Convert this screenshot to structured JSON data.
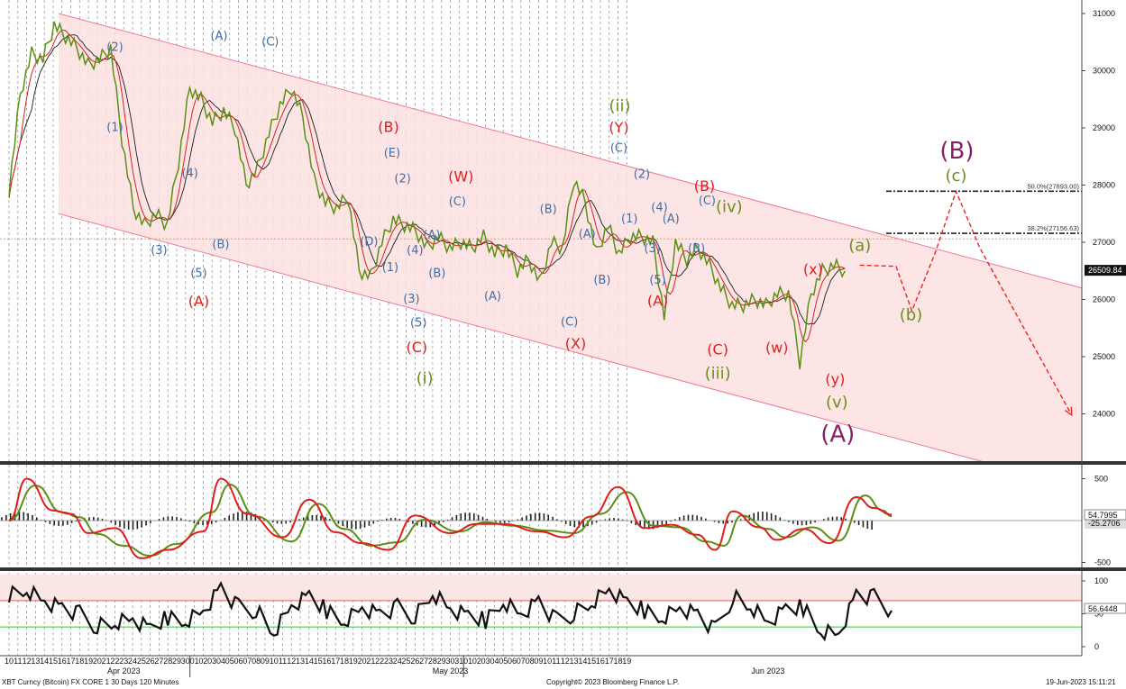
{
  "chart_data": {
    "type": "line",
    "instrument": "XBT Curncy (Bitcoin) FX CORE 1 30 Days 120 Minutes",
    "copyright": "Copyright© 2023 Bloomberg Finance L.P.",
    "timestamp": "19-Jun-2023 15:11:21",
    "last_price_label": "26509.84",
    "y_ticks": [
      "31000",
      "30000",
      "29000",
      "28000",
      "27000",
      "26000",
      "25000",
      "24000"
    ],
    "ylim": [
      23200,
      31200
    ],
    "x_day_labels": [
      "10",
      "11",
      "12",
      "13",
      "14",
      "15",
      "16",
      "17",
      "18",
      "19",
      "20",
      "21",
      "22",
      "23",
      "24",
      "25",
      "26",
      "27",
      "28",
      "29",
      "30",
      "01",
      "02",
      "03",
      "04",
      "05",
      "06",
      "07",
      "08",
      "09",
      "10",
      "11",
      "12",
      "13",
      "14",
      "15",
      "16",
      "17",
      "18",
      "19",
      "20",
      "21",
      "22",
      "23",
      "24",
      "25",
      "26",
      "27",
      "28",
      "29",
      "30",
      "31",
      "01",
      "02",
      "03",
      "04",
      "05",
      "06",
      "07",
      "08",
      "09",
      "10",
      "11",
      "12",
      "13",
      "14",
      "15",
      "16",
      "17",
      "18",
      "19"
    ],
    "x_month_labels": [
      {
        "label": "Apr 2023",
        "day_index": 13
      },
      {
        "label": "May 2023",
        "day_index": 50
      },
      {
        "label": "Jun 2023",
        "day_index": 86
      }
    ],
    "price_series": [
      [
        0,
        27900
      ],
      [
        1,
        29600
      ],
      [
        2,
        30300
      ],
      [
        3,
        30200
      ],
      [
        4,
        30800
      ],
      [
        5,
        30600
      ],
      [
        6,
        30400
      ],
      [
        7,
        30100
      ],
      [
        8,
        30200
      ],
      [
        9,
        30400
      ],
      [
        10,
        28800
      ],
      [
        11,
        27600
      ],
      [
        12,
        27300
      ],
      [
        13,
        27500
      ],
      [
        14,
        27300
      ],
      [
        15,
        28400
      ],
      [
        16,
        29700
      ],
      [
        17,
        29500
      ],
      [
        18,
        29100
      ],
      [
        19,
        29300
      ],
      [
        20,
        29000
      ],
      [
        21,
        28000
      ],
      [
        22,
        28300
      ],
      [
        23,
        28900
      ],
      [
        24,
        29400
      ],
      [
        25,
        29700
      ],
      [
        26,
        29200
      ],
      [
        27,
        28100
      ],
      [
        28,
        27700
      ],
      [
        29,
        27600
      ],
      [
        30,
        27800
      ],
      [
        31,
        26500
      ],
      [
        32,
        26400
      ],
      [
        33,
        27000
      ],
      [
        34,
        27400
      ],
      [
        35,
        27300
      ],
      [
        36,
        27200
      ],
      [
        37,
        26900
      ],
      [
        38,
        27100
      ],
      [
        39,
        26900
      ],
      [
        40,
        27000
      ],
      [
        41,
        26900
      ],
      [
        42,
        27100
      ],
      [
        43,
        26800
      ],
      [
        44,
        26900
      ],
      [
        45,
        26500
      ],
      [
        46,
        26700
      ],
      [
        47,
        26300
      ],
      [
        48,
        27000
      ],
      [
        49,
        26900
      ],
      [
        50,
        28100
      ],
      [
        51,
        27700
      ],
      [
        52,
        26800
      ],
      [
        53,
        27300
      ],
      [
        54,
        26800
      ],
      [
        55,
        27100
      ],
      [
        56,
        27100
      ],
      [
        57,
        27000
      ],
      [
        58,
        25700
      ],
      [
        59,
        27000
      ],
      [
        60,
        26700
      ],
      [
        61,
        26900
      ],
      [
        62,
        26600
      ],
      [
        63,
        26200
      ],
      [
        64,
        25900
      ],
      [
        65,
        25900
      ],
      [
        66,
        26000
      ],
      [
        67,
        25900
      ],
      [
        68,
        26100
      ],
      [
        69,
        26100
      ],
      [
        70,
        24900
      ],
      [
        71,
        26100
      ],
      [
        72,
        26500
      ],
      [
        73,
        26600
      ],
      [
        74,
        26500
      ]
    ],
    "horizontal_levels": [
      {
        "label": "50.0%(27893.00)",
        "value": 27893
      },
      {
        "label": "38.2%(27156.63)",
        "value": 27157
      },
      {
        "value": 27060,
        "style": "dotted-orange"
      }
    ],
    "channel": {
      "upper": [
        [
          4,
          31000
        ],
        [
          117,
          26200
        ]
      ],
      "lower": [
        [
          4,
          27500
        ],
        [
          117,
          22700
        ]
      ]
    },
    "wave_labels": [
      {
        "t": "(2)",
        "x": 12,
        "y": 30400,
        "c": "blue"
      },
      {
        "t": "(1)",
        "x": 12,
        "y": 29000,
        "c": "blue"
      },
      {
        "t": "(4)",
        "x": 20.5,
        "y": 28200,
        "c": "blue"
      },
      {
        "t": "(3)",
        "x": 17,
        "y": 26850,
        "c": "blue"
      },
      {
        "t": "(B)",
        "x": 24,
        "y": 26950,
        "c": "blue"
      },
      {
        "t": "(5)",
        "x": 21.5,
        "y": 26450,
        "c": "blue"
      },
      {
        "t": "(A)",
        "x": 21.5,
        "y": 25950,
        "c": "red"
      },
      {
        "t": "(A)",
        "x": 23.8,
        "y": 30600,
        "c": "blue"
      },
      {
        "t": "(C)",
        "x": 29.6,
        "y": 30500,
        "c": "blue"
      },
      {
        "t": "(B)",
        "x": 43,
        "y": 29000,
        "c": "red"
      },
      {
        "t": "(E)",
        "x": 43.4,
        "y": 28550,
        "c": "blue"
      },
      {
        "t": "(2)",
        "x": 44.6,
        "y": 28100,
        "c": "blue"
      },
      {
        "t": "(D)",
        "x": 40.8,
        "y": 27000,
        "c": "blue"
      },
      {
        "t": "(1)",
        "x": 43.2,
        "y": 26550,
        "c": "blue"
      },
      {
        "t": "(4)",
        "x": 46,
        "y": 26850,
        "c": "blue"
      },
      {
        "t": "(A)",
        "x": 47.9,
        "y": 27120,
        "c": "blue"
      },
      {
        "t": "(B)",
        "x": 48.5,
        "y": 26450,
        "c": "blue"
      },
      {
        "t": "(3)",
        "x": 45.6,
        "y": 26000,
        "c": "blue"
      },
      {
        "t": "(5)",
        "x": 46.4,
        "y": 25580,
        "c": "blue"
      },
      {
        "t": "(C)",
        "x": 46.2,
        "y": 25150,
        "c": "red"
      },
      {
        "t": "(i)",
        "x": 47.1,
        "y": 24610,
        "c": "green"
      },
      {
        "t": "(W)",
        "x": 51.2,
        "y": 28130,
        "c": "red"
      },
      {
        "t": "(C)",
        "x": 50.8,
        "y": 27700,
        "c": "blue"
      },
      {
        "t": "(A)",
        "x": 54.8,
        "y": 26050,
        "c": "blue"
      },
      {
        "t": "(B)",
        "x": 61.1,
        "y": 27570,
        "c": "blue"
      },
      {
        "t": "(A)",
        "x": 65.5,
        "y": 27130,
        "c": "blue"
      },
      {
        "t": "(B)",
        "x": 67.2,
        "y": 26330,
        "c": "blue"
      },
      {
        "t": "(C)",
        "x": 63.5,
        "y": 25600,
        "c": "blue"
      },
      {
        "t": "(X)",
        "x": 64.2,
        "y": 25210,
        "c": "red"
      },
      {
        "t": "(ii)",
        "x": 69.2,
        "y": 29370,
        "c": "green"
      },
      {
        "t": "(Y)",
        "x": 69.1,
        "y": 28990,
        "c": "red"
      },
      {
        "t": "(C)",
        "x": 69.1,
        "y": 28640,
        "c": "blue"
      },
      {
        "t": "(2)",
        "x": 71.7,
        "y": 28180,
        "c": "blue"
      },
      {
        "t": "(1)",
        "x": 70.3,
        "y": 27400,
        "c": "blue"
      },
      {
        "t": "(4)",
        "x": 73.7,
        "y": 27600,
        "c": "blue"
      },
      {
        "t": "(A)",
        "x": 75,
        "y": 27400,
        "c": "blue"
      },
      {
        "t": "(3)",
        "x": 72.9,
        "y": 26880,
        "c": "blue"
      },
      {
        "t": "(5)",
        "x": 73.5,
        "y": 26330,
        "c": "blue"
      },
      {
        "t": "(A)",
        "x": 73.5,
        "y": 25960,
        "c": "red"
      },
      {
        "t": "(B)",
        "x": 77.9,
        "y": 26880,
        "c": "blue"
      },
      {
        "t": "(B)",
        "x": 78.8,
        "y": 27970,
        "c": "red"
      },
      {
        "t": "(C)",
        "x": 79.1,
        "y": 27720,
        "c": "blue"
      },
      {
        "t": "(iv)",
        "x": 81.6,
        "y": 27610,
        "c": "green"
      },
      {
        "t": "(C)",
        "x": 80.3,
        "y": 25110,
        "c": "red"
      },
      {
        "t": "(iii)",
        "x": 80.3,
        "y": 24690,
        "c": "green"
      },
      {
        "t": "(w)",
        "x": 87,
        "y": 25140,
        "c": "red"
      },
      {
        "t": "(x)",
        "x": 91.1,
        "y": 26510,
        "c": "red"
      },
      {
        "t": "(y)",
        "x": 93.6,
        "y": 24590,
        "c": "red"
      },
      {
        "t": "(v)",
        "x": 93.8,
        "y": 24190,
        "c": "green"
      },
      {
        "t": "(A)",
        "x": 93.9,
        "y": 23630,
        "c": "purple"
      },
      {
        "t": "(a)",
        "x": 96.4,
        "y": 26930,
        "c": "green"
      },
      {
        "t": "(b)",
        "x": 102.2,
        "y": 25720,
        "c": "green"
      },
      {
        "t": "(c)",
        "x": 107.3,
        "y": 28150,
        "c": "green"
      },
      {
        "t": "(B)",
        "x": 107.4,
        "y": 28580,
        "c": "purple"
      }
    ],
    "forecast_path": [
      [
        96.4,
        26600
      ],
      [
        100.5,
        26580
      ],
      [
        102.3,
        25800
      ],
      [
        104.9,
        26800
      ],
      [
        107.3,
        27890
      ],
      [
        110,
        26900
      ],
      [
        120.4,
        23980
      ]
    ],
    "macd": {
      "ticks": [
        "500",
        "-500"
      ],
      "ylim": [
        -620,
        620
      ],
      "last_value": "54.7995",
      "second_value": "-25.2706",
      "series_fast": [
        [
          0,
          0
        ],
        [
          2,
          500
        ],
        [
          5,
          120
        ],
        [
          7,
          80
        ],
        [
          9,
          -150
        ],
        [
          12,
          -90
        ],
        [
          15,
          -450
        ],
        [
          18,
          -350
        ],
        [
          22,
          -130
        ],
        [
          24,
          500
        ],
        [
          27,
          80
        ],
        [
          31,
          -200
        ],
        [
          34,
          250
        ],
        [
          37,
          -140
        ],
        [
          40,
          -270
        ],
        [
          43,
          -350
        ],
        [
          46,
          60
        ],
        [
          50,
          -150
        ],
        [
          53,
          -40
        ],
        [
          56,
          -40
        ],
        [
          60,
          -130
        ],
        [
          63,
          -200
        ],
        [
          66,
          50
        ],
        [
          69,
          400
        ],
        [
          72,
          -90
        ],
        [
          75,
          -50
        ],
        [
          78,
          -170
        ],
        [
          80,
          -350
        ],
        [
          82,
          110
        ],
        [
          85,
          -80
        ],
        [
          87,
          -230
        ],
        [
          90,
          -100
        ],
        [
          93,
          -270
        ],
        [
          96,
          280
        ],
        [
          98,
          150
        ],
        [
          100,
          70
        ]
      ],
      "series_signal": [
        [
          0,
          0
        ],
        [
          3,
          420
        ],
        [
          6,
          100
        ],
        [
          8,
          40
        ],
        [
          10,
          -160
        ],
        [
          13,
          -300
        ],
        [
          16,
          -420
        ],
        [
          19,
          -280
        ],
        [
          23,
          100
        ],
        [
          25,
          430
        ],
        [
          28,
          50
        ],
        [
          32,
          -250
        ],
        [
          35,
          200
        ],
        [
          38,
          -100
        ],
        [
          41,
          -300
        ],
        [
          44,
          -260
        ],
        [
          47,
          10
        ],
        [
          51,
          -130
        ],
        [
          54,
          -20
        ],
        [
          57,
          -60
        ],
        [
          61,
          -120
        ],
        [
          64,
          -150
        ],
        [
          67,
          80
        ],
        [
          70,
          340
        ],
        [
          73,
          -60
        ],
        [
          76,
          -80
        ],
        [
          79,
          -250
        ],
        [
          81,
          -300
        ],
        [
          83,
          60
        ],
        [
          86,
          -100
        ],
        [
          88,
          -200
        ],
        [
          91,
          -80
        ],
        [
          94,
          -240
        ],
        [
          97,
          300
        ],
        [
          99,
          120
        ],
        [
          100,
          50
        ]
      ]
    },
    "rsi": {
      "ticks": [
        "100",
        "50",
        "0"
      ],
      "ylim": [
        -5,
        110
      ],
      "last_value": "56.6448",
      "upper_line": 70,
      "lower_line": 30,
      "series": [
        [
          0,
          80
        ],
        [
          2,
          88
        ],
        [
          4,
          70
        ],
        [
          6,
          60
        ],
        [
          8,
          50
        ],
        [
          10,
          30
        ],
        [
          12,
          35
        ],
        [
          14,
          40
        ],
        [
          16,
          25
        ],
        [
          18,
          45
        ],
        [
          20,
          40
        ],
        [
          22,
          55
        ],
        [
          24,
          90
        ],
        [
          26,
          60
        ],
        [
          28,
          55
        ],
        [
          30,
          20
        ],
        [
          32,
          60
        ],
        [
          34,
          75
        ],
        [
          36,
          55
        ],
        [
          38,
          40
        ],
        [
          40,
          60
        ],
        [
          42,
          50
        ],
        [
          44,
          60
        ],
        [
          46,
          45
        ],
        [
          48,
          80
        ],
        [
          50,
          55
        ],
        [
          52,
          45
        ],
        [
          54,
          40
        ],
        [
          56,
          70
        ],
        [
          58,
          50
        ],
        [
          60,
          70
        ],
        [
          62,
          40
        ],
        [
          64,
          50
        ],
        [
          66,
          65
        ],
        [
          68,
          85
        ],
        [
          70,
          65
        ],
        [
          72,
          55
        ],
        [
          74,
          45
        ],
        [
          76,
          60
        ],
        [
          78,
          50
        ],
        [
          80,
          25
        ],
        [
          82,
          75
        ],
        [
          84,
          60
        ],
        [
          86,
          35
        ],
        [
          88,
          55
        ],
        [
          90,
          60
        ],
        [
          92,
          25
        ],
        [
          94,
          20
        ],
        [
          96,
          80
        ],
        [
          98,
          75
        ],
        [
          100,
          55
        ]
      ]
    }
  },
  "colors": {
    "channel_fill": "#fde0e0",
    "channel_line": "#f07896",
    "price": "#5a8f14",
    "ma_red": "#e01e1e",
    "ma_dark": "#1a1a1a",
    "forecast": "#ee2222",
    "fib_line": "#222222",
    "orange_level": "#f0a030",
    "wave_blue": "#3c6fa8",
    "wave_red": "#e01e1e",
    "wave_green": "#6a8f1e",
    "wave_purple": "#8a1f68",
    "rsi_line": "#111111",
    "rsi_upper": "#e06060",
    "rsi_lower": "#39c339"
  }
}
